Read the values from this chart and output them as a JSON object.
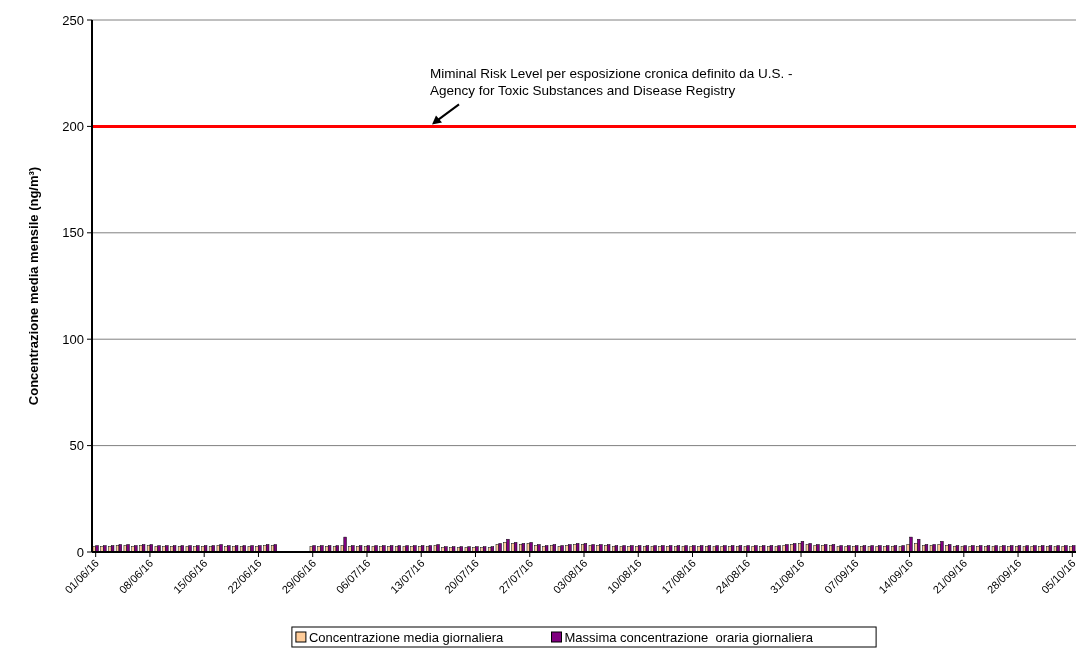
{
  "chart_data": {
    "type": "bar",
    "ylabel": "Concentrazione media mensile (ng/m³)",
    "categories": [
      "01/06/16",
      null,
      null,
      null,
      null,
      null,
      null,
      "08/06/16",
      null,
      null,
      null,
      null,
      null,
      null,
      "15/06/16",
      null,
      null,
      null,
      null,
      null,
      null,
      "22/06/16",
      null,
      null,
      null,
      null,
      null,
      null,
      "29/06/16",
      null,
      null,
      null,
      null,
      null,
      null,
      "06/07/16",
      null,
      null,
      null,
      null,
      null,
      null,
      "13/07/16",
      null,
      null,
      null,
      null,
      null,
      null,
      "20/07/16",
      null,
      null,
      null,
      null,
      null,
      null,
      "27/07/16",
      null,
      null,
      null,
      null,
      null,
      null,
      "03/08/16",
      null,
      null,
      null,
      null,
      null,
      null,
      "10/08/16",
      null,
      null,
      null,
      null,
      null,
      null,
      "17/08/16",
      null,
      null,
      null,
      null,
      null,
      null,
      "24/08/16",
      null,
      null,
      null,
      null,
      null,
      null,
      "31/08/16",
      null,
      null,
      null,
      null,
      null,
      null,
      "07/09/16",
      null,
      null,
      null,
      null,
      null,
      null,
      "14/09/16",
      null,
      null,
      null,
      null,
      null,
      null,
      "21/09/16",
      null,
      null,
      null,
      null,
      null,
      null,
      "28/09/16",
      null,
      null,
      null,
      null,
      null,
      null,
      "05/10/16"
    ],
    "series": [
      {
        "name": "Concentrazione media giornaliera",
        "color": "#ffcc99",
        "values": [
          2.5,
          2.5,
          2.5,
          3,
          3,
          2.5,
          3,
          3,
          2.5,
          2.5,
          2.5,
          2.5,
          2.5,
          2.5,
          2.5,
          2.5,
          3,
          2.5,
          2.5,
          2.5,
          2.5,
          2.5,
          3,
          3,
          null,
          null,
          null,
          null,
          2.5,
          2.5,
          2.5,
          2.5,
          3,
          2.5,
          2.5,
          2.5,
          2.5,
          2.5,
          2.5,
          2.5,
          2.5,
          2.5,
          2.5,
          2.5,
          3,
          2,
          2,
          2,
          2,
          2,
          2,
          2,
          3.5,
          4.5,
          4,
          3.5,
          4,
          3,
          2.5,
          3,
          2.5,
          3,
          3.5,
          3.5,
          3,
          3,
          3,
          2.5,
          2.5,
          2.5,
          2.5,
          2.5,
          2.5,
          2.5,
          2.5,
          2.5,
          2.5,
          2.5,
          2.5,
          2.5,
          2.5,
          2.5,
          2.5,
          2.5,
          2.5,
          2.5,
          2.5,
          2.5,
          2.5,
          3,
          3.5,
          4,
          3.5,
          3,
          3,
          3,
          2.5,
          2.5,
          2.5,
          2.5,
          2.5,
          2.5,
          2.5,
          2.5,
          2.5,
          3.5,
          4,
          3,
          3,
          3.5,
          3,
          2.5,
          2.5,
          2.5,
          2.5,
          2.5,
          2.5,
          2.5,
          2.5,
          2.5,
          2.5,
          2.5,
          2.5,
          2.5,
          2.5,
          2.5,
          2.5
        ]
      },
      {
        "name": "Massima concentrazione  oraria giornaliera",
        "color": "#800080",
        "values": [
          3,
          3,
          3,
          3.5,
          3.5,
          3,
          3.5,
          3.5,
          3,
          3,
          3,
          3,
          3,
          3,
          3,
          3,
          3.5,
          3,
          3,
          3,
          3,
          3,
          3.5,
          3.5,
          null,
          null,
          null,
          null,
          3,
          3,
          3,
          3,
          7,
          3,
          3,
          3,
          3,
          3,
          3,
          3,
          3,
          3,
          3,
          3,
          3.5,
          2.5,
          2.5,
          2.5,
          2.5,
          2.5,
          2.5,
          2.5,
          4,
          6,
          4.5,
          4,
          4.5,
          3.5,
          3,
          3.5,
          3,
          3.5,
          4,
          4,
          3.5,
          3.5,
          3.5,
          3,
          3,
          3,
          3,
          3,
          3,
          3,
          3,
          3,
          3,
          3,
          3,
          3,
          3,
          3,
          3,
          3,
          3,
          3,
          3,
          3,
          3,
          3.5,
          4,
          5,
          4,
          3.5,
          3.5,
          3.5,
          3,
          3,
          3,
          3,
          3,
          3,
          3,
          3,
          3,
          7,
          6,
          3.5,
          3.5,
          5,
          3.5,
          3,
          3,
          3,
          3,
          3,
          3,
          3,
          3,
          3,
          3,
          3,
          3,
          3,
          3,
          3,
          3
        ]
      }
    ],
    "ylim": [
      0,
      250
    ],
    "yticks": [
      0,
      50,
      100,
      150,
      200,
      250
    ],
    "grid": "y",
    "legend": "bottom",
    "ref_lines": [
      {
        "axis": "y",
        "value": 200,
        "color": "#ff0000",
        "label": "Miminal Risk Level per esposizione cronica definito da U.S. -\nAgency for Toxic Substances and Disease Registry"
      }
    ]
  }
}
